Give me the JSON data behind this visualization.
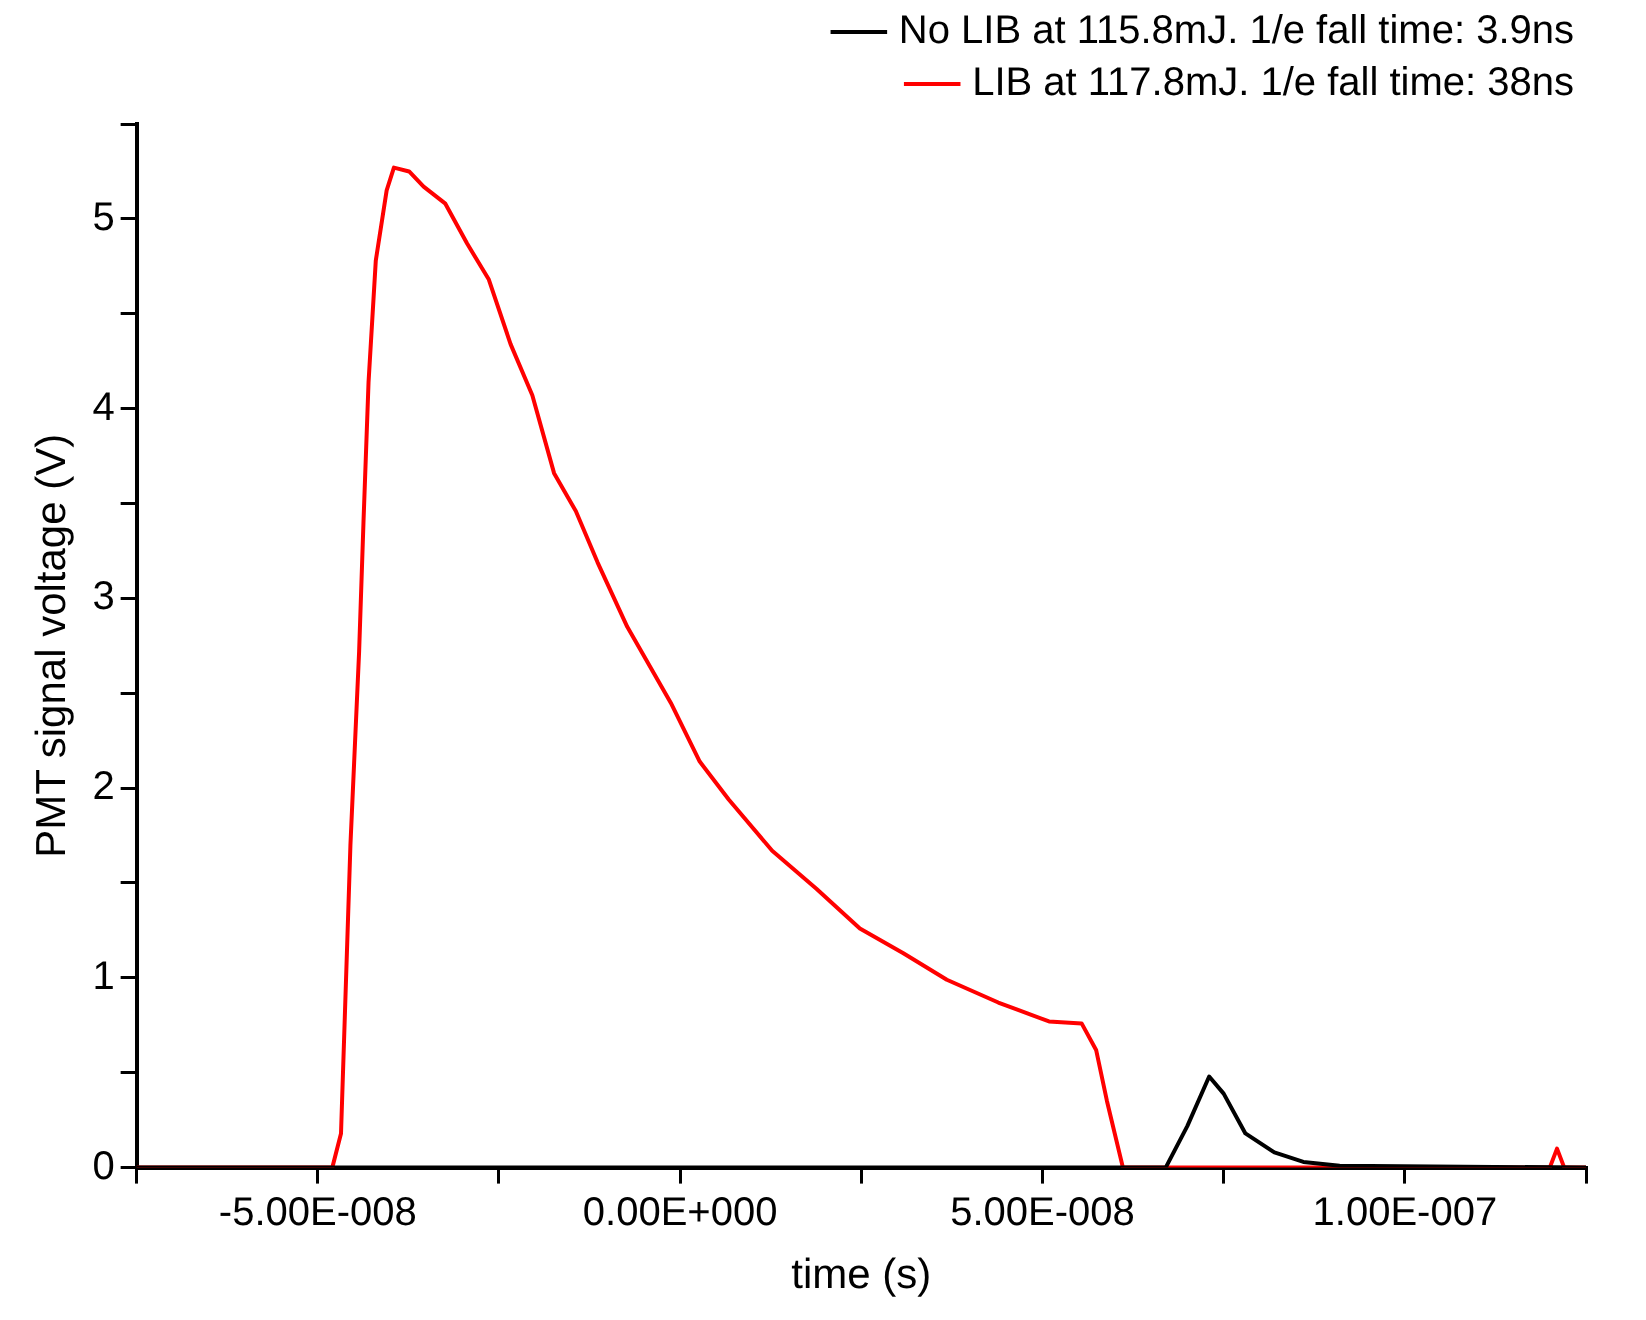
{
  "chart_data": {
    "type": "line",
    "xlabel": "time (s)",
    "ylabel": "PMT signal voltage (V)",
    "xlim": [
      -7.5e-08,
      1.25e-07
    ],
    "ylim": [
      0,
      5.5
    ],
    "xticks": [
      {
        "value": -7.5e-08,
        "label": null
      },
      {
        "value": -5e-08,
        "label": "-5.00E-008"
      },
      {
        "value": -2.5e-08,
        "label": null
      },
      {
        "value": 0,
        "label": "0.00E+000"
      },
      {
        "value": 2.5e-08,
        "label": null
      },
      {
        "value": 5e-08,
        "label": "5.00E-008"
      },
      {
        "value": 7.5e-08,
        "label": null
      },
      {
        "value": 1e-07,
        "label": "1.00E-007"
      },
      {
        "value": 1.25e-07,
        "label": null
      }
    ],
    "yticks": [
      0,
      {
        "value": 0.5,
        "label": null
      },
      1,
      {
        "value": 1.5,
        "label": null
      },
      2,
      {
        "value": 2.5,
        "label": null
      },
      3,
      {
        "value": 3.5,
        "label": null
      },
      4,
      {
        "value": 4.5,
        "label": null
      },
      5,
      {
        "value": 5.5,
        "label": null
      }
    ],
    "grid": false,
    "legend": "top right",
    "marker": "none",
    "line_style": "solid",
    "series": [
      {
        "name": "No LIB at 115.8mJ. 1/e fall time: 3.9ns",
        "color": "#000000",
        "x": [
          -7.5e-08,
          6.7e-08,
          7e-08,
          7.3e-08,
          7.5e-08,
          7.8e-08,
          8.2e-08,
          8.6e-08,
          9.1e-08,
          1.25e-07
        ],
        "values": [
          0,
          0,
          0.22,
          0.48,
          0.39,
          0.18,
          0.08,
          0.03,
          0.01,
          0
        ]
      },
      {
        "name": "LIB at 117.8mJ. 1/e fall time: 38ns",
        "color": "#ff0000",
        "x": [
          -7.5e-08,
          -4.8e-08,
          -4.68e-08,
          -4.55e-08,
          -4.43e-08,
          -4.37e-08,
          -4.3e-08,
          -4.2e-08,
          -4.05e-08,
          -3.95e-08,
          -3.74e-08,
          -3.54e-08,
          -3.24e-08,
          -2.94e-08,
          -2.64e-08,
          -2.34e-08,
          -2.04e-08,
          -1.74e-08,
          -1.44e-08,
          -1.14e-08,
          -7.3e-09,
          -1.3e-09,
          2.7e-09,
          6.7e-09,
          1.27e-08,
          1.88e-08,
          2.48e-08,
          3.08e-08,
          3.68e-08,
          4.39e-08,
          5.09e-08,
          5.54e-08,
          5.74e-08,
          5.89e-08,
          6.11e-08,
          1.2e-07,
          1.21e-07,
          1.22e-07,
          1.25e-07
        ],
        "values": [
          0,
          0,
          0.18,
          1.7,
          2.72,
          3.4,
          4.14,
          4.78,
          5.15,
          5.27,
          5.25,
          5.17,
          5.08,
          4.87,
          4.68,
          4.34,
          4.07,
          3.66,
          3.46,
          3.19,
          2.85,
          2.45,
          2.14,
          1.94,
          1.67,
          1.47,
          1.26,
          1.13,
          0.99,
          0.87,
          0.77,
          0.76,
          0.62,
          0.35,
          0,
          0,
          0.1,
          0,
          0
        ]
      }
    ]
  }
}
